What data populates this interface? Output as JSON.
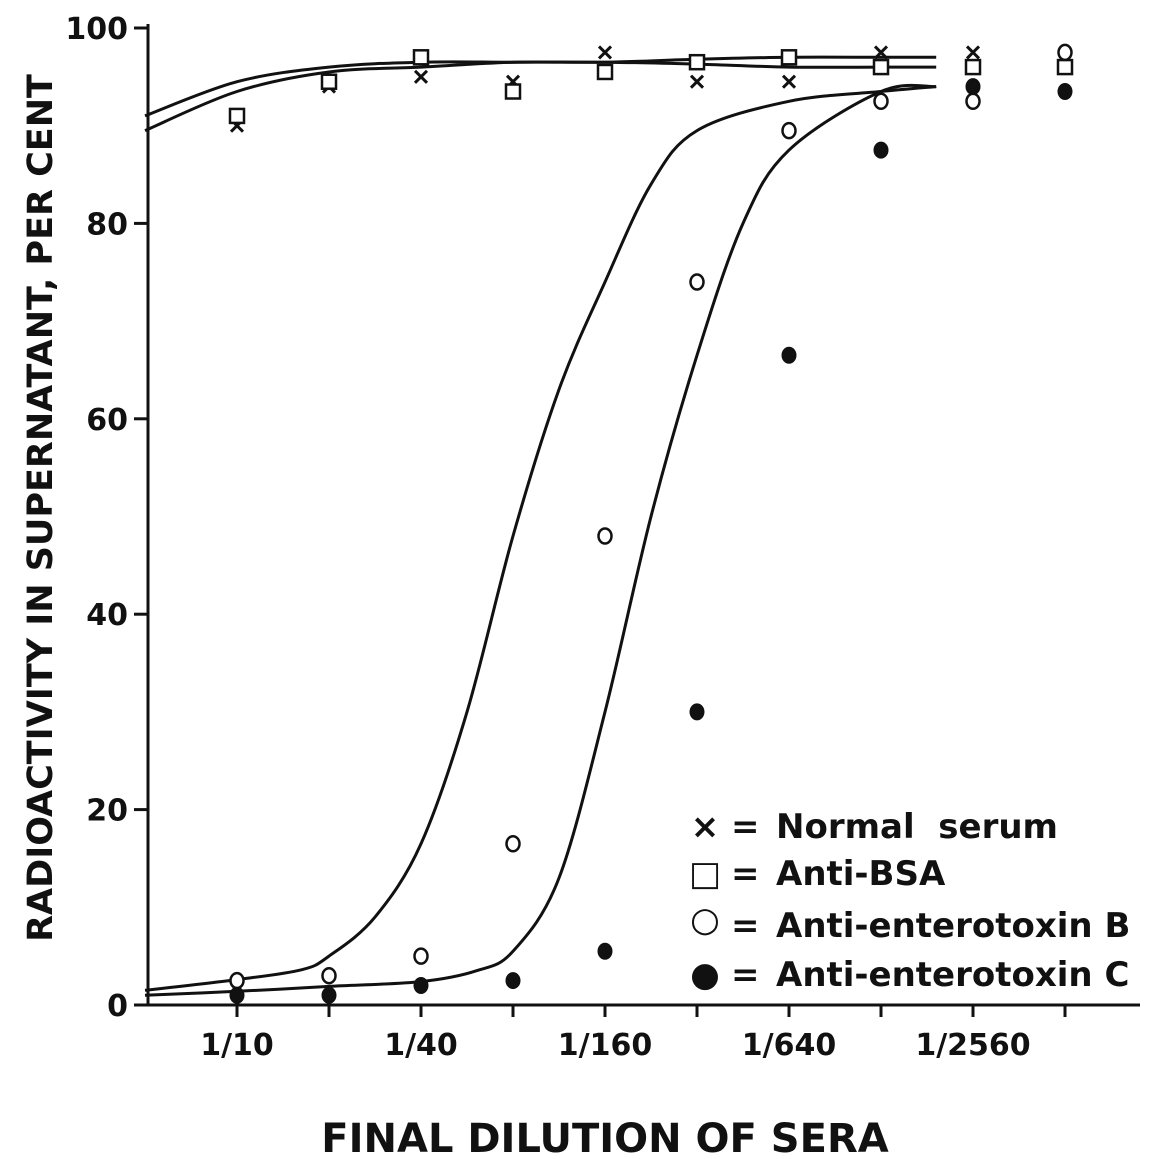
{
  "chart_data": {
    "type": "line",
    "title": "",
    "xlabel": "FINAL DILUTION OF SERA",
    "ylabel": "RADIOACTIVITY IN SUPERNATANT, PER CENT",
    "x_scale": "log2",
    "x_values": [
      "1/10",
      "1/20",
      "1/40",
      "1/80",
      "1/160",
      "1/320",
      "1/640",
      "1/1280",
      "1/2560",
      "1/5120"
    ],
    "xlim": [
      "1/10",
      "1/5120"
    ],
    "x_tick_labels": [
      "1/10",
      "1/40",
      "1/160",
      "1/640",
      "1/2560"
    ],
    "ylim": [
      0,
      100
    ],
    "y_ticks": [
      0,
      20,
      40,
      60,
      80,
      100
    ],
    "y_tick_labels": [
      "0",
      "20",
      "40",
      "60",
      "80",
      "100"
    ],
    "grid": false,
    "legend_position": "bottom-right",
    "series": [
      {
        "name": "Normal serum",
        "marker": "x",
        "legend_symbol": "×",
        "points": [
          {
            "x": "1/10",
            "y": 90
          },
          {
            "x": "1/20",
            "y": 94
          },
          {
            "x": "1/40",
            "y": 95
          },
          {
            "x": "1/80",
            "y": 94.5
          },
          {
            "x": "1/160",
            "y": 97.5
          },
          {
            "x": "1/320",
            "y": 94.5
          },
          {
            "x": "1/640",
            "y": 94.5
          },
          {
            "x": "1/1280",
            "y": 97.5
          },
          {
            "x": "1/2560",
            "y": 97.5
          },
          {
            "x": "1/5120",
            "y": 97
          }
        ],
        "curve": [
          [
            -1,
            89.5
          ],
          [
            0,
            93.5
          ],
          [
            1,
            95.5
          ],
          [
            2,
            96
          ],
          [
            3,
            96.5
          ],
          [
            4,
            96.5
          ],
          [
            5,
            96.8
          ],
          [
            6,
            97
          ],
          [
            7,
            97
          ],
          [
            7.6,
            97
          ]
        ]
      },
      {
        "name": "Anti-BSA",
        "marker": "square",
        "legend_symbol": "□",
        "points": [
          {
            "x": "1/10",
            "y": 91
          },
          {
            "x": "1/20",
            "y": 94.5
          },
          {
            "x": "1/40",
            "y": 97
          },
          {
            "x": "1/80",
            "y": 93.5
          },
          {
            "x": "1/160",
            "y": 95.5
          },
          {
            "x": "1/320",
            "y": 96.5
          },
          {
            "x": "1/640",
            "y": 97
          },
          {
            "x": "1/1280",
            "y": 96
          },
          {
            "x": "1/2560",
            "y": 96
          },
          {
            "x": "1/5120",
            "y": 96
          }
        ],
        "curve": [
          [
            -1,
            91
          ],
          [
            0,
            94.5
          ],
          [
            1,
            96
          ],
          [
            2,
            96.5
          ],
          [
            3,
            96.5
          ],
          [
            4,
            96.5
          ],
          [
            5,
            96.3
          ],
          [
            6,
            96
          ],
          [
            7,
            96
          ],
          [
            7.6,
            96
          ]
        ]
      },
      {
        "name": "Anti-enterotoxin B",
        "marker": "open-circle",
        "legend_symbol": "○",
        "points": [
          {
            "x": "1/10",
            "y": 2.5
          },
          {
            "x": "1/20",
            "y": 3
          },
          {
            "x": "1/40",
            "y": 5
          },
          {
            "x": "1/80",
            "y": 16.5
          },
          {
            "x": "1/160",
            "y": 48
          },
          {
            "x": "1/320",
            "y": 74
          },
          {
            "x": "1/640",
            "y": 89.5
          },
          {
            "x": "1/1280",
            "y": 92.5
          },
          {
            "x": "1/2560",
            "y": 92.5
          },
          {
            "x": "1/5120",
            "y": 97.5
          }
        ],
        "curve": [
          [
            -1,
            1.5
          ],
          [
            0,
            2.6
          ],
          [
            0.7,
            3.6
          ],
          [
            1,
            5
          ],
          [
            1.5,
            9
          ],
          [
            2,
            16.5
          ],
          [
            2.5,
            30
          ],
          [
            3,
            48
          ],
          [
            3.5,
            63
          ],
          [
            4,
            74
          ],
          [
            4.5,
            84
          ],
          [
            5,
            89.5
          ],
          [
            6,
            92.5
          ],
          [
            7,
            93.5
          ],
          [
            7.6,
            94
          ]
        ]
      },
      {
        "name": "Anti-enterotoxin C",
        "marker": "filled-circle",
        "legend_symbol": "●",
        "points": [
          {
            "x": "1/10",
            "y": 1
          },
          {
            "x": "1/20",
            "y": 1
          },
          {
            "x": "1/40",
            "y": 2
          },
          {
            "x": "1/80",
            "y": 2.5
          },
          {
            "x": "1/160",
            "y": 5.5
          },
          {
            "x": "1/320",
            "y": 30
          },
          {
            "x": "1/640",
            "y": 66.5
          },
          {
            "x": "1/1280",
            "y": 87.5
          },
          {
            "x": "1/2560",
            "y": 94
          },
          {
            "x": "1/5120",
            "y": 93.5
          }
        ],
        "curve": [
          [
            -1,
            1
          ],
          [
            0,
            1.4
          ],
          [
            1,
            1.9
          ],
          [
            2,
            2.4
          ],
          [
            2.6,
            3.5
          ],
          [
            3,
            5.5
          ],
          [
            3.5,
            13
          ],
          [
            4,
            30
          ],
          [
            4.5,
            50
          ],
          [
            5,
            66.5
          ],
          [
            5.5,
            80
          ],
          [
            6,
            87.5
          ],
          [
            7,
            93.5
          ],
          [
            7.6,
            94
          ]
        ]
      }
    ]
  },
  "legend": {
    "items": [
      {
        "symbol": "×",
        "label": "Normal  serum"
      },
      {
        "symbol": "□",
        "label": "Anti-BSA"
      },
      {
        "symbol": "○",
        "label": "Anti-enterotoxin B"
      },
      {
        "symbol": "●",
        "label": "Anti-enterotoxin C"
      }
    ],
    "equals": "="
  },
  "colors": {
    "ink": "#111111",
    "background": "#ffffff"
  }
}
